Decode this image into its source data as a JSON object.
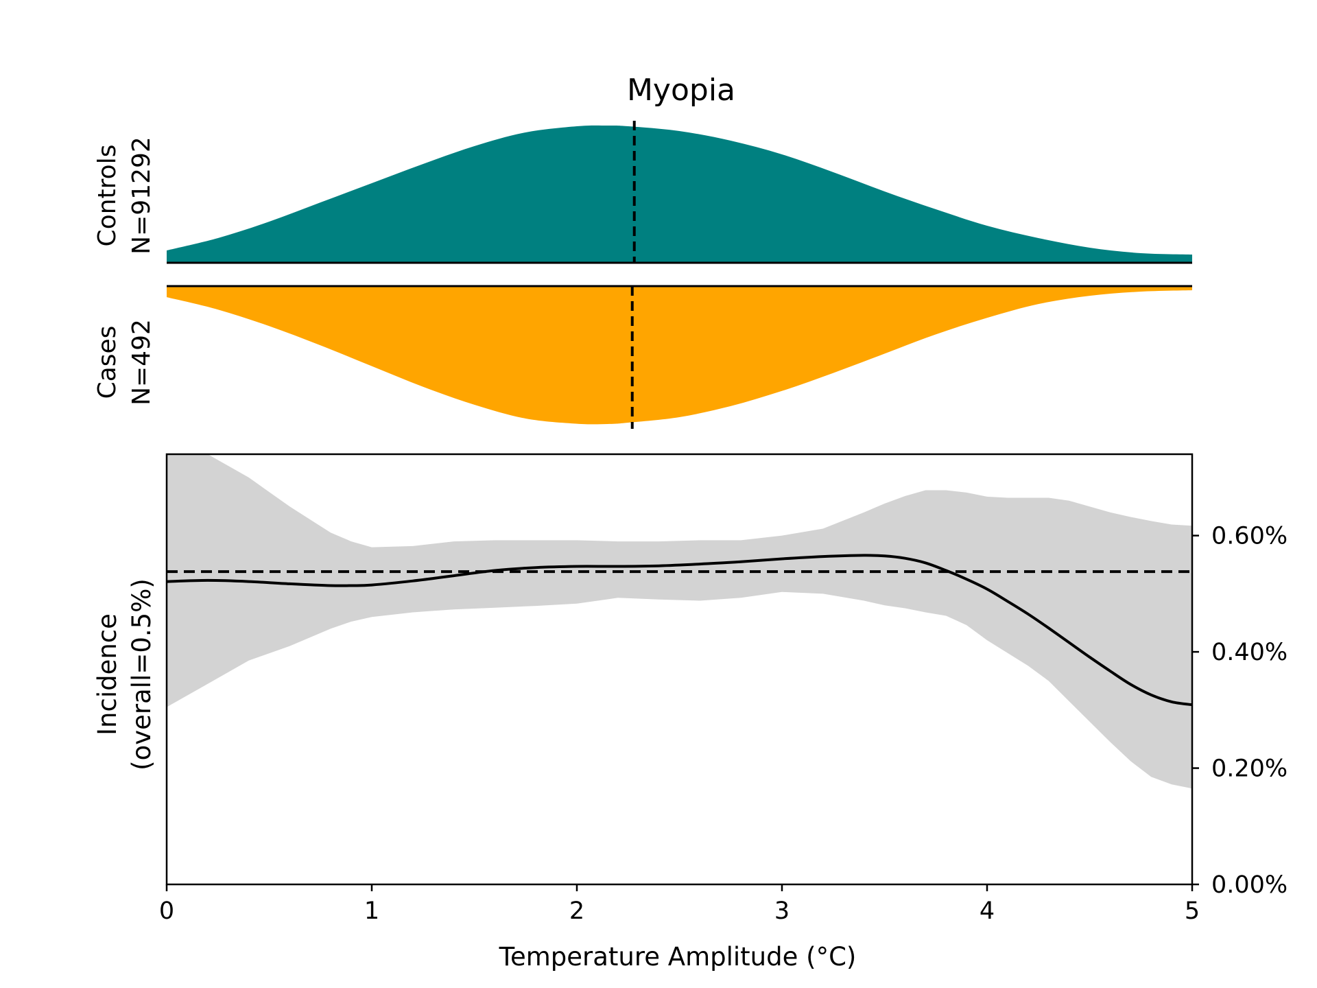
{
  "title": "Myopia",
  "colors": {
    "controls": "#008080",
    "cases": "#FFA500",
    "ci_band": "#d3d3d3",
    "line": "#000000"
  },
  "chart_data": [
    {
      "type": "area",
      "panel": "controls-density",
      "label_lines": [
        "Controls",
        "N=91292"
      ],
      "x": [
        0,
        0.25,
        0.5,
        0.75,
        1.0,
        1.25,
        1.5,
        1.75,
        2.0,
        2.15,
        2.25,
        2.5,
        2.75,
        3.0,
        3.25,
        3.5,
        3.75,
        4.0,
        4.25,
        4.5,
        4.75,
        5.0
      ],
      "density": [
        0.09,
        0.18,
        0.3,
        0.44,
        0.58,
        0.72,
        0.85,
        0.95,
        0.995,
        1.0,
        0.995,
        0.96,
        0.89,
        0.79,
        0.66,
        0.52,
        0.39,
        0.27,
        0.18,
        0.11,
        0.07,
        0.06
      ],
      "median": 2.28
    },
    {
      "type": "area",
      "panel": "cases-density",
      "label_lines": [
        "Cases",
        "N=492"
      ],
      "x": [
        0,
        0.25,
        0.5,
        0.75,
        1.0,
        1.25,
        1.5,
        1.75,
        2.0,
        2.15,
        2.25,
        2.5,
        2.75,
        3.0,
        3.25,
        3.5,
        3.75,
        4.0,
        4.25,
        4.5,
        4.75,
        5.0
      ],
      "density": [
        0.08,
        0.17,
        0.29,
        0.43,
        0.58,
        0.73,
        0.86,
        0.96,
        0.998,
        1.0,
        0.99,
        0.95,
        0.87,
        0.76,
        0.63,
        0.49,
        0.35,
        0.23,
        0.13,
        0.07,
        0.04,
        0.03
      ],
      "median": 2.27
    },
    {
      "type": "line",
      "panel": "incidence",
      "xlabel": "Temperature Amplitude (°C)",
      "ylabel_lines": [
        "Incidence",
        "(overall=0.5%)"
      ],
      "xlim": [
        0,
        5
      ],
      "ylim": [
        0,
        0.74
      ],
      "xticks": [
        0,
        1,
        2,
        3,
        4,
        5
      ],
      "yticks": [
        0.0,
        0.2,
        0.4,
        0.6
      ],
      "ytick_labels": [
        "0.00%",
        "0.20%",
        "0.40%",
        "0.60%"
      ],
      "overall_reference": 0.538,
      "x": [
        0,
        0.2,
        0.4,
        0.6,
        0.8,
        0.9,
        1.0,
        1.2,
        1.4,
        1.6,
        1.8,
        2.0,
        2.2,
        2.4,
        2.6,
        2.8,
        3.0,
        3.2,
        3.4,
        3.5,
        3.6,
        3.7,
        3.8,
        3.9,
        4.0,
        4.1,
        4.2,
        4.3,
        4.4,
        4.5,
        4.6,
        4.7,
        4.8,
        4.9,
        5.0
      ],
      "incidence": [
        0.521,
        0.523,
        0.521,
        0.517,
        0.514,
        0.514,
        0.515,
        0.522,
        0.531,
        0.54,
        0.545,
        0.547,
        0.547,
        0.548,
        0.551,
        0.555,
        0.56,
        0.564,
        0.566,
        0.565,
        0.561,
        0.553,
        0.54,
        0.525,
        0.508,
        0.487,
        0.465,
        0.441,
        0.416,
        0.391,
        0.367,
        0.344,
        0.326,
        0.314,
        0.309
      ],
      "ci_lower": [
        0.305,
        0.345,
        0.385,
        0.41,
        0.44,
        0.452,
        0.46,
        0.468,
        0.473,
        0.476,
        0.479,
        0.483,
        0.493,
        0.49,
        0.488,
        0.493,
        0.503,
        0.5,
        0.488,
        0.48,
        0.475,
        0.468,
        0.462,
        0.446,
        0.42,
        0.398,
        0.376,
        0.35,
        0.315,
        0.28,
        0.245,
        0.212,
        0.185,
        0.172,
        0.165
      ],
      "ci_upper": [
        0.8,
        0.76,
        0.7,
        0.65,
        0.605,
        0.59,
        0.58,
        0.582,
        0.59,
        0.592,
        0.592,
        0.592,
        0.59,
        0.59,
        0.592,
        0.592,
        0.6,
        0.612,
        0.64,
        0.655,
        0.668,
        0.678,
        0.678,
        0.674,
        0.667,
        0.665,
        0.665,
        0.665,
        0.66,
        0.65,
        0.64,
        0.632,
        0.625,
        0.619,
        0.617
      ]
    }
  ]
}
